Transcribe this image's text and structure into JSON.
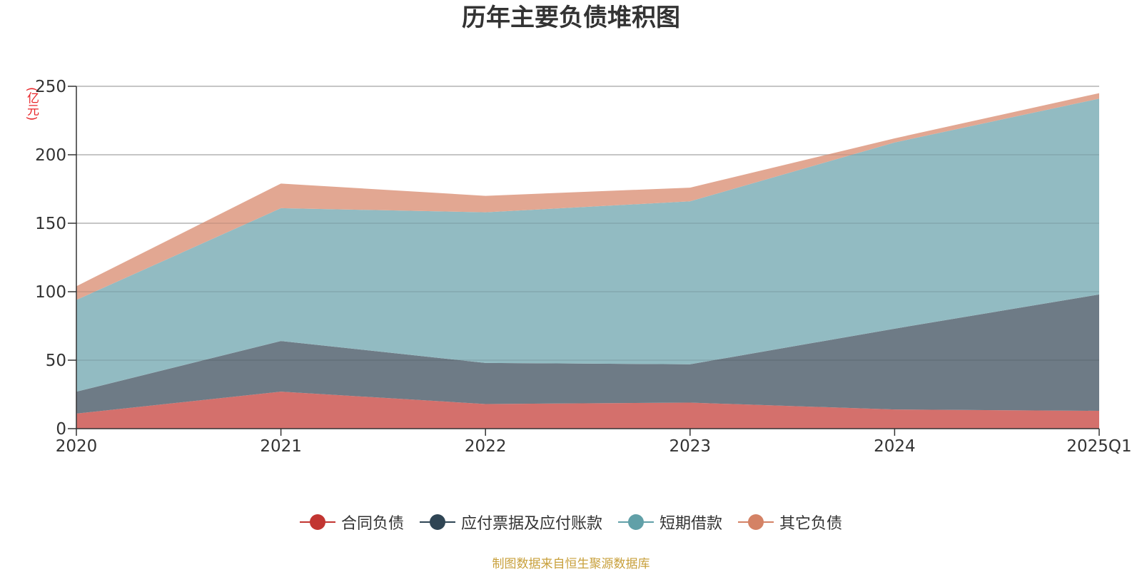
{
  "title": "历年主要负债堆积图",
  "unit_label": "(亿元)",
  "source_note": "制图数据来自恒生聚源数据库",
  "chart_data": {
    "type": "area",
    "stacked": true,
    "categories": [
      "2020",
      "2021",
      "2022",
      "2023",
      "2024",
      "2025Q1"
    ],
    "ylim": [
      0,
      250
    ],
    "yticks": [
      0,
      50,
      100,
      150,
      200,
      250
    ],
    "grid": true,
    "legend_position": "bottom",
    "series": [
      {
        "name": "合同负债",
        "color": "#c23531",
        "fill": "#d4706c",
        "values": [
          11,
          27,
          18,
          19,
          14,
          13
        ]
      },
      {
        "name": "应付票据及应付账款",
        "color": "#2f4554",
        "fill": "#6e7b86",
        "values": [
          16,
          37,
          30,
          28,
          59,
          85
        ]
      },
      {
        "name": "短期借款",
        "color": "#61a0a8",
        "fill": "#92bbc2",
        "values": [
          67,
          97,
          110,
          119,
          136,
          143
        ]
      },
      {
        "name": "其它负债",
        "color": "#d48265",
        "fill": "#e2a792",
        "values": [
          10,
          18,
          12,
          10,
          3,
          4
        ]
      }
    ]
  }
}
